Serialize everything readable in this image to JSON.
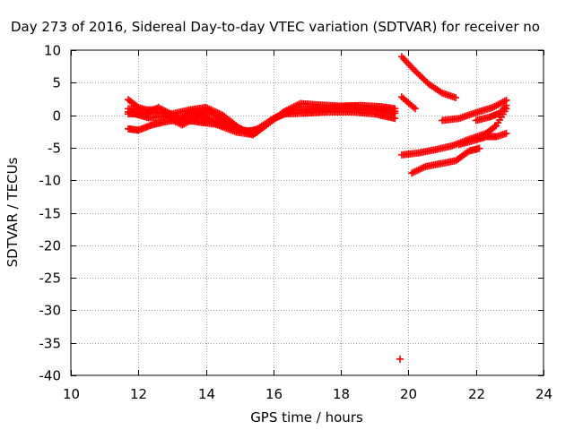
{
  "chart_data": {
    "type": "scatter",
    "title": "Day 273 of 2016, Sidereal Day-to-day VTEC variation (SDTVAR) for receiver no",
    "xlabel": "GPS time / hours",
    "ylabel": "SDTVAR / TECUs",
    "xlim": [
      10,
      24
    ],
    "ylim": [
      -40,
      10
    ],
    "xticks": [
      10,
      12,
      14,
      16,
      18,
      20,
      22,
      24
    ],
    "yticks": [
      -40,
      -35,
      -30,
      -25,
      -20,
      -15,
      -10,
      -5,
      0,
      5,
      10
    ],
    "grid": true,
    "marker": "+",
    "color": "#ff0000",
    "series_tracks": [
      [
        [
          11.7,
          2.4
        ],
        [
          12.0,
          1.2
        ],
        [
          12.5,
          0.4
        ],
        [
          13.0,
          0.2
        ],
        [
          13.5,
          0.8
        ],
        [
          14.0,
          1.2
        ],
        [
          14.5,
          0.0
        ],
        [
          15.0,
          -2.0
        ],
        [
          15.4,
          -3.0
        ],
        [
          15.8,
          -1.5
        ],
        [
          16.3,
          0.5
        ],
        [
          16.8,
          1.8
        ],
        [
          17.3,
          1.6
        ],
        [
          18.0,
          1.4
        ],
        [
          18.6,
          1.5
        ],
        [
          19.2,
          1.3
        ],
        [
          19.6,
          1.0
        ]
      ],
      [
        [
          11.7,
          1.0
        ],
        [
          12.2,
          0.8
        ],
        [
          12.7,
          0.9
        ],
        [
          13.2,
          -0.5
        ],
        [
          13.7,
          0.2
        ],
        [
          14.1,
          0.5
        ],
        [
          14.6,
          -1.0
        ],
        [
          15.1,
          -2.3
        ],
        [
          15.5,
          -2.6
        ],
        [
          16.0,
          -0.5
        ],
        [
          16.5,
          0.8
        ],
        [
          17.0,
          0.8
        ],
        [
          17.8,
          1.2
        ],
        [
          18.5,
          1.0
        ],
        [
          19.2,
          0.8
        ],
        [
          19.6,
          0.3
        ]
      ],
      [
        [
          11.7,
          0.2
        ],
        [
          12.2,
          0.2
        ],
        [
          12.6,
          1.2
        ],
        [
          13.1,
          -1.0
        ],
        [
          13.6,
          0.7
        ],
        [
          14.2,
          -0.8
        ],
        [
          14.8,
          -1.8
        ],
        [
          15.3,
          -2.8
        ],
        [
          15.8,
          -1.2
        ],
        [
          16.3,
          0.2
        ],
        [
          16.9,
          0.3
        ],
        [
          17.6,
          0.5
        ],
        [
          18.3,
          0.5
        ],
        [
          19.0,
          0.2
        ],
        [
          19.6,
          -0.5
        ]
      ],
      [
        [
          11.7,
          -2.1
        ],
        [
          12.0,
          -2.3
        ],
        [
          12.4,
          -1.5
        ],
        [
          12.8,
          -1.0
        ],
        [
          13.2,
          -0.7
        ],
        [
          13.6,
          -0.9
        ],
        [
          14.0,
          -1.2
        ],
        [
          14.6,
          -1.6
        ],
        [
          15.2,
          -2.5
        ],
        [
          15.6,
          -2.1
        ]
      ],
      [
        [
          11.7,
          0.5
        ],
        [
          12.3,
          -0.4
        ],
        [
          12.8,
          -0.2
        ],
        [
          13.3,
          -1.5
        ],
        [
          13.8,
          -0.1
        ],
        [
          14.3,
          -1.4
        ],
        [
          14.9,
          -2.6
        ],
        [
          15.4,
          -3.0
        ],
        [
          15.9,
          -0.8
        ],
        [
          16.6,
          0.8
        ],
        [
          17.4,
          1.0
        ],
        [
          18.2,
          1.3
        ],
        [
          19.0,
          1.0
        ],
        [
          19.6,
          0.6
        ]
      ],
      [
        [
          19.8,
          9.0
        ],
        [
          20.2,
          6.8
        ],
        [
          20.6,
          4.8
        ],
        [
          21.0,
          3.4
        ],
        [
          21.4,
          2.7
        ]
      ],
      [
        [
          19.8,
          2.8
        ],
        [
          20.2,
          1.0
        ]
      ],
      [
        [
          21.0,
          -0.8
        ],
        [
          21.5,
          -0.5
        ],
        [
          22.0,
          0.4
        ],
        [
          22.5,
          1.2
        ],
        [
          22.9,
          2.3
        ]
      ],
      [
        [
          19.8,
          -6.1
        ],
        [
          20.3,
          -5.8
        ],
        [
          20.8,
          -5.3
        ],
        [
          21.3,
          -4.7
        ],
        [
          21.8,
          -3.7
        ],
        [
          22.3,
          -2.8
        ],
        [
          22.6,
          -1.6
        ],
        [
          22.9,
          1.0
        ]
      ],
      [
        [
          20.1,
          -8.9
        ],
        [
          20.5,
          -7.9
        ],
        [
          21.0,
          -7.4
        ],
        [
          21.4,
          -7.0
        ],
        [
          21.8,
          -5.5
        ],
        [
          22.1,
          -5.1
        ]
      ],
      [
        [
          21.5,
          -4.5
        ],
        [
          22.0,
          -3.8
        ],
        [
          22.3,
          -3.3
        ],
        [
          22.6,
          -3.3
        ],
        [
          22.9,
          -2.8
        ]
      ],
      [
        [
          22.0,
          -0.8
        ],
        [
          22.4,
          -0.3
        ],
        [
          22.7,
          0.3
        ],
        [
          22.9,
          1.5
        ]
      ]
    ],
    "isolated_points": [
      [
        19.75,
        -37.5
      ]
    ]
  }
}
